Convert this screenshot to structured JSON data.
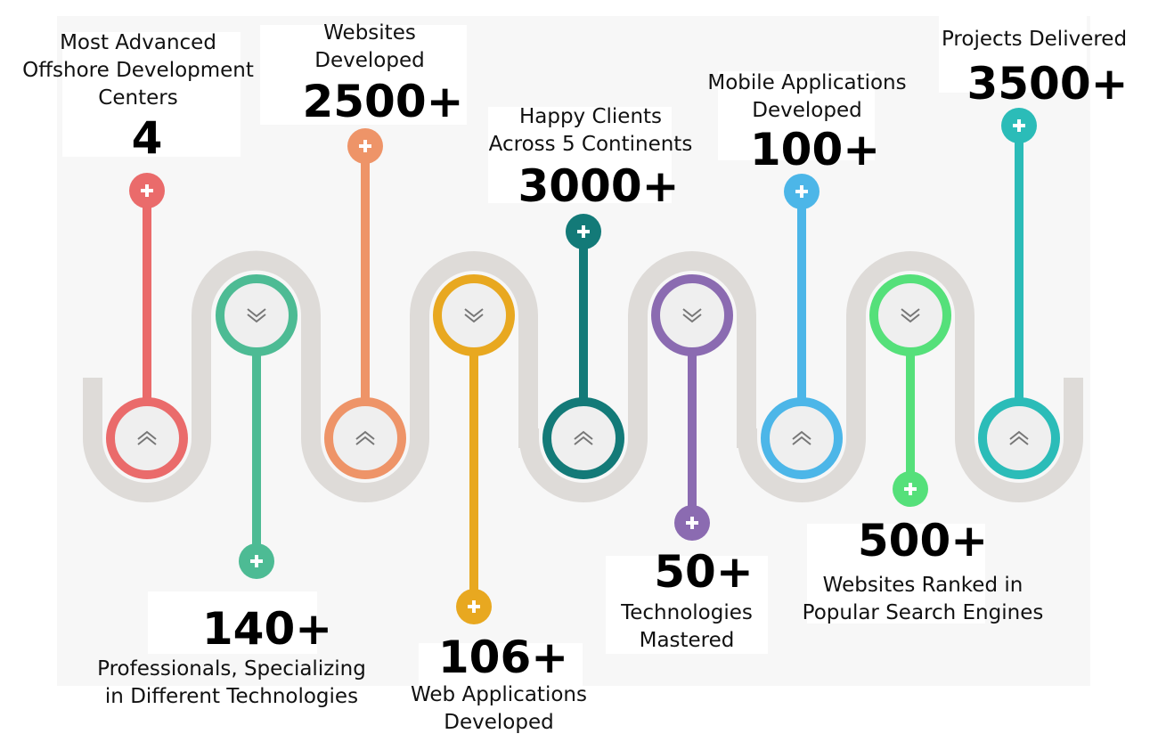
{
  "colors": {
    "track": "#dedbd8",
    "inner": "#efefef",
    "ring_1": "#ea6b6b",
    "ring_2": "#4dbb94",
    "ring_3": "#ee9468",
    "ring_4": "#e8a820",
    "ring_5": "#137a78",
    "ring_6": "#8b6bb1",
    "ring_7": "#4cb6e8",
    "ring_8": "#55e07a",
    "ring_9": "#2bbcb8"
  },
  "stats": [
    {
      "caption_1": "Most Advanced",
      "caption_2": "Offshore Development",
      "caption_3": "Centers",
      "value": "4"
    },
    {
      "caption_1": "Professionals, Specializing",
      "caption_2": "in Different Technologies",
      "value": "140+"
    },
    {
      "caption_1": "Websites",
      "caption_2": "Developed",
      "value": "2500+"
    },
    {
      "caption_1": "Web Applications",
      "caption_2": "Developed",
      "value": "106+"
    },
    {
      "caption_1": "Happy Clients",
      "caption_2": "Across 5 Continents",
      "value": "3000+"
    },
    {
      "caption_1": "Technologies",
      "caption_2": "Mastered",
      "value": "50+"
    },
    {
      "caption_1": "Mobile Applications",
      "caption_2": "Developed",
      "value": "100+"
    },
    {
      "caption_1": "Websites Ranked in",
      "caption_2": "Popular Search Engines",
      "value": "500+"
    },
    {
      "caption_1": "Projects Delivered",
      "value": "3500+"
    }
  ],
  "icons": {
    "node_up": "chevron-up-double-icon",
    "node_down": "chevron-down-double-icon",
    "pin": "plus-icon"
  }
}
